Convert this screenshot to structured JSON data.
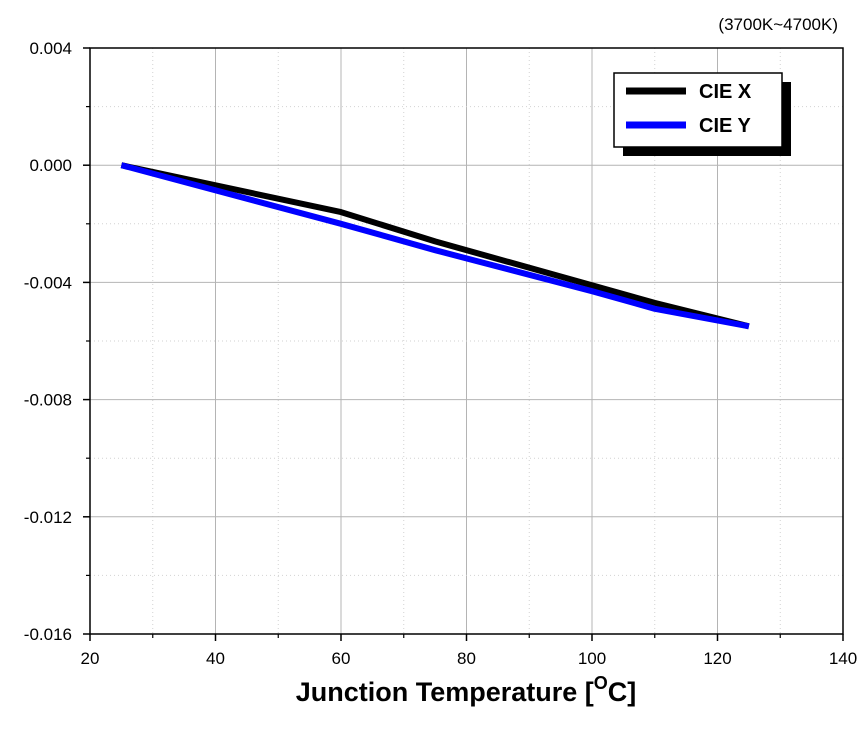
{
  "chart_data": {
    "type": "line",
    "annotation": "(3700K~4700K)",
    "xlabel": "Junction Temperature [",
    "xlabel_sup": "O",
    "xlabel_end": "C]",
    "xlim": [
      20,
      140
    ],
    "ylim": [
      -0.016,
      0.004
    ],
    "x_ticks": [
      "20",
      "40",
      "60",
      "80",
      "100",
      "120",
      "140"
    ],
    "y_ticks": [
      "0.004",
      "0.000",
      "-0.004",
      "-0.008",
      "-0.012",
      "-0.016"
    ],
    "grid": true,
    "legend_position": "top-right",
    "series": [
      {
        "name": "CIE X",
        "color": "#000000",
        "x": [
          25,
          60,
          75,
          100,
          110,
          125
        ],
        "y": [
          0.0,
          -0.0016,
          -0.0026,
          -0.0041,
          -0.0047,
          -0.0055
        ]
      },
      {
        "name": "CIE Y",
        "color": "#0000ff",
        "x": [
          25,
          60,
          75,
          100,
          110,
          125
        ],
        "y": [
          0.0,
          -0.002,
          -0.0029,
          -0.0043,
          -0.0049,
          -0.0055
        ]
      }
    ]
  }
}
